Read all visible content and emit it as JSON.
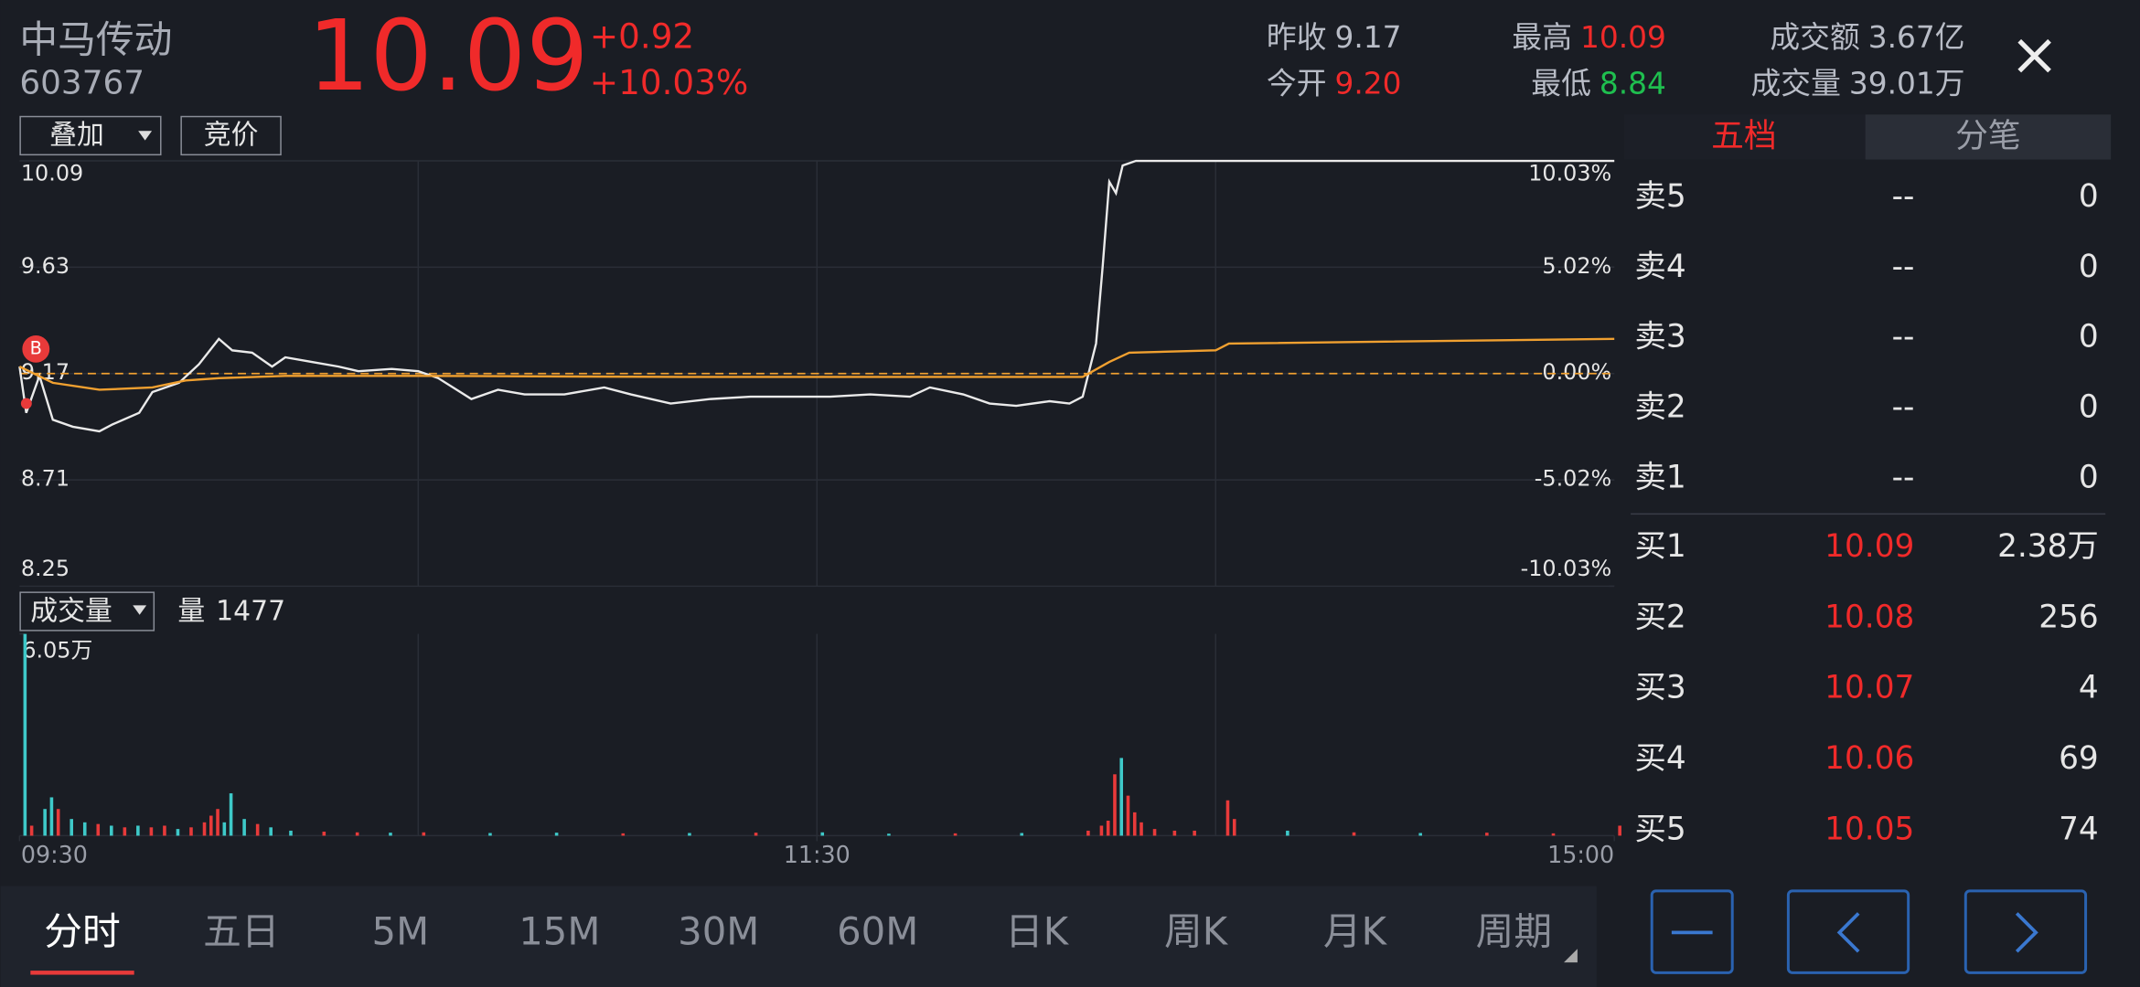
{
  "header": {
    "name": "中马传动",
    "code": "603767",
    "price": "10.09",
    "change": "+0.92",
    "change_pct": "+10.03%",
    "stats": [
      {
        "label": "昨收",
        "value": "9.17",
        "color": "#b8bcc6"
      },
      {
        "label": "今开",
        "value": "9.20",
        "color": "#f02a2a"
      },
      {
        "label": "最高",
        "value": "10.09",
        "color": "#f02a2a"
      },
      {
        "label": "最低",
        "value": "8.84",
        "color": "#1fbf4f"
      },
      {
        "label": "成交额",
        "value": "3.67亿",
        "color": "#b8bcc6"
      },
      {
        "label": "成交量",
        "value": "39.01万",
        "color": "#b8bcc6"
      }
    ]
  },
  "controls": {
    "overlay": "叠加",
    "auction": "竞价",
    "volume_menu": "成交量",
    "volume_now_label": "量",
    "volume_now": "1477"
  },
  "chart_data": {
    "type": "line",
    "xlim": [
      0,
      240
    ],
    "xticks": [
      {
        "value": 0,
        "label": "09:30"
      },
      {
        "value": 120,
        "label": "11:30"
      },
      {
        "value": 240,
        "label": "15:00"
      }
    ],
    "ylim": [
      8.25,
      10.09
    ],
    "yticks": [
      10.09,
      9.63,
      9.17,
      8.71,
      8.25
    ],
    "y2lim": [
      -10.03,
      10.03
    ],
    "y2ticks": [
      {
        "value": 10.03,
        "label": "10.03%"
      },
      {
        "value": 5.02,
        "label": "5.02%"
      },
      {
        "value": 0,
        "label": "0.00%"
      },
      {
        "value": -5.02,
        "label": "-5.02%"
      },
      {
        "value": -10.03,
        "label": "-10.03%"
      }
    ],
    "reference": 9.17,
    "grid": true,
    "series": [
      {
        "color": "#eaeaea",
        "x": [
          0,
          1,
          3,
          5,
          8,
          12,
          14,
          18,
          20,
          24,
          27,
          30,
          32,
          35,
          38,
          40,
          44,
          48,
          51,
          56,
          60,
          63,
          68,
          72,
          76,
          82,
          88,
          92,
          98,
          104,
          110,
          116,
          122,
          128,
          134,
          137,
          142,
          146,
          150,
          155,
          158,
          160,
          162,
          163,
          164,
          165,
          166,
          168,
          240
        ],
        "values": [
          9.2,
          9.0,
          9.16,
          8.97,
          8.94,
          8.92,
          8.95,
          9.0,
          9.09,
          9.13,
          9.21,
          9.32,
          9.27,
          9.26,
          9.2,
          9.24,
          9.22,
          9.2,
          9.18,
          9.19,
          9.18,
          9.15,
          9.06,
          9.1,
          9.08,
          9.08,
          9.11,
          9.08,
          9.04,
          9.06,
          9.07,
          9.07,
          9.07,
          9.08,
          9.07,
          9.11,
          9.08,
          9.04,
          9.03,
          9.05,
          9.04,
          9.07,
          9.3,
          9.63,
          10.0,
          9.95,
          10.07,
          10.09,
          10.09
        ]
      },
      {
        "color": "#f0a030",
        "x": [
          0,
          5,
          12,
          20,
          25,
          30,
          40,
          60,
          100,
          160,
          164,
          167,
          180,
          182,
          240
        ],
        "values": [
          9.2,
          9.13,
          9.1,
          9.11,
          9.14,
          9.15,
          9.16,
          9.16,
          9.155,
          9.155,
          9.22,
          9.26,
          9.27,
          9.3,
          9.32
        ]
      }
    ]
  },
  "volume": {
    "type": "bar",
    "ylim": [
      0,
      60500
    ],
    "yticks": [
      {
        "value": 60500,
        "label": "6.05万"
      }
    ],
    "up_color": "#e83a3a",
    "down_color": "#3ec9c9",
    "x": [
      0,
      1,
      3,
      4,
      5,
      7,
      9,
      11,
      13,
      15,
      17,
      19,
      21,
      23,
      25,
      27,
      28,
      29,
      30,
      31,
      33,
      35,
      37,
      40,
      45,
      50,
      55,
      60,
      70,
      80,
      90,
      100,
      110,
      120,
      130,
      140,
      150,
      160,
      162,
      163,
      164,
      165,
      166,
      167,
      168,
      170,
      173,
      176,
      181,
      182,
      190,
      200,
      210,
      220,
      230,
      240
    ],
    "values": [
      60500,
      3000,
      8000,
      11500,
      8000,
      5000,
      4000,
      3500,
      3000,
      2500,
      3000,
      2500,
      3000,
      2000,
      2500,
      4000,
      6000,
      8000,
      4000,
      12700,
      5000,
      3500,
      2500,
      1500,
      1200,
      1000,
      900,
      1000,
      800,
      900,
      700,
      800,
      900,
      1000,
      600,
      700,
      800,
      1500,
      3000,
      4500,
      18400,
      23300,
      12000,
      7000,
      4000,
      2000,
      1500,
      1500,
      10600,
      5000,
      1500,
      1000,
      800,
      900,
      700,
      3000
    ],
    "up": [
      false,
      true,
      false,
      false,
      true,
      false,
      false,
      true,
      false,
      true,
      false,
      true,
      true,
      false,
      true,
      true,
      true,
      true,
      false,
      false,
      false,
      true,
      false,
      false,
      true,
      true,
      false,
      true,
      false,
      false,
      true,
      false,
      true,
      false,
      false,
      true,
      false,
      true,
      true,
      true,
      true,
      false,
      true,
      true,
      true,
      true,
      true,
      true,
      true,
      true,
      false,
      true,
      false,
      true,
      true,
      true
    ]
  },
  "order_book": {
    "tabs": [
      "五档",
      "分笔"
    ],
    "asks": [
      {
        "label": "卖5",
        "price": "--",
        "volume": "0"
      },
      {
        "label": "卖4",
        "price": "--",
        "volume": "0"
      },
      {
        "label": "卖3",
        "price": "--",
        "volume": "0"
      },
      {
        "label": "卖2",
        "price": "--",
        "volume": "0"
      },
      {
        "label": "卖1",
        "price": "--",
        "volume": "0"
      }
    ],
    "bids": [
      {
        "label": "买1",
        "price": "10.09",
        "volume": "2.38万"
      },
      {
        "label": "买2",
        "price": "10.08",
        "volume": "256"
      },
      {
        "label": "买3",
        "price": "10.07",
        "volume": "4"
      },
      {
        "label": "买4",
        "price": "10.06",
        "volume": "69"
      },
      {
        "label": "买5",
        "price": "10.05",
        "volume": "74"
      }
    ]
  },
  "tabs": {
    "items": [
      "分时",
      "五日",
      "5M",
      "15M",
      "30M",
      "60M",
      "日K",
      "周K",
      "月K",
      "周期"
    ],
    "active": 0
  }
}
